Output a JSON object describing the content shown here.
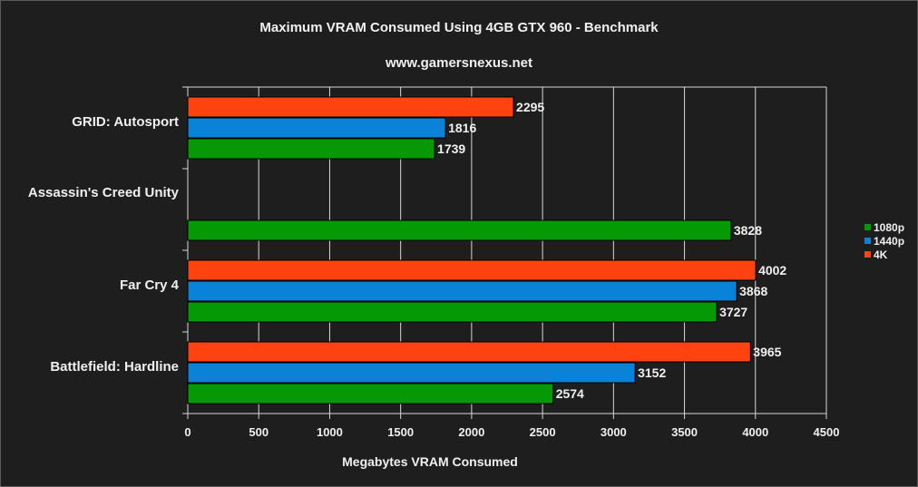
{
  "chart_data": {
    "type": "bar",
    "orientation": "horizontal",
    "title": "Maximum VRAM Consumed Using 4GB GTX 960 - Benchmark",
    "subtitle": "www.gamersnexus.net",
    "xlabel": "Megabytes VRAM Consumed",
    "ylabel": "",
    "xlim": [
      0,
      4500
    ],
    "xticks": [
      0,
      500,
      1000,
      1500,
      2000,
      2500,
      3000,
      3500,
      4000,
      4500
    ],
    "grid": true,
    "legend_position": "right",
    "categories": [
      "GRID: Autosport",
      "Assassin's Creed Unity",
      "Far Cry 4",
      "Battlefield: Hardline"
    ],
    "series": [
      {
        "name": "4K",
        "color": "#ff4310",
        "values": [
          2295,
          null,
          4002,
          3965
        ]
      },
      {
        "name": "1440p",
        "color": "#0a82d8",
        "values": [
          1816,
          null,
          3868,
          3152
        ]
      },
      {
        "name": "1080p",
        "color": "#069906",
        "values": [
          1739,
          3828,
          3727,
          2574
        ]
      }
    ],
    "legend": [
      {
        "name": "1080p",
        "color": "#069906"
      },
      {
        "name": "1440p",
        "color": "#0a82d8"
      },
      {
        "name": "4K",
        "color": "#ff4310"
      }
    ]
  }
}
